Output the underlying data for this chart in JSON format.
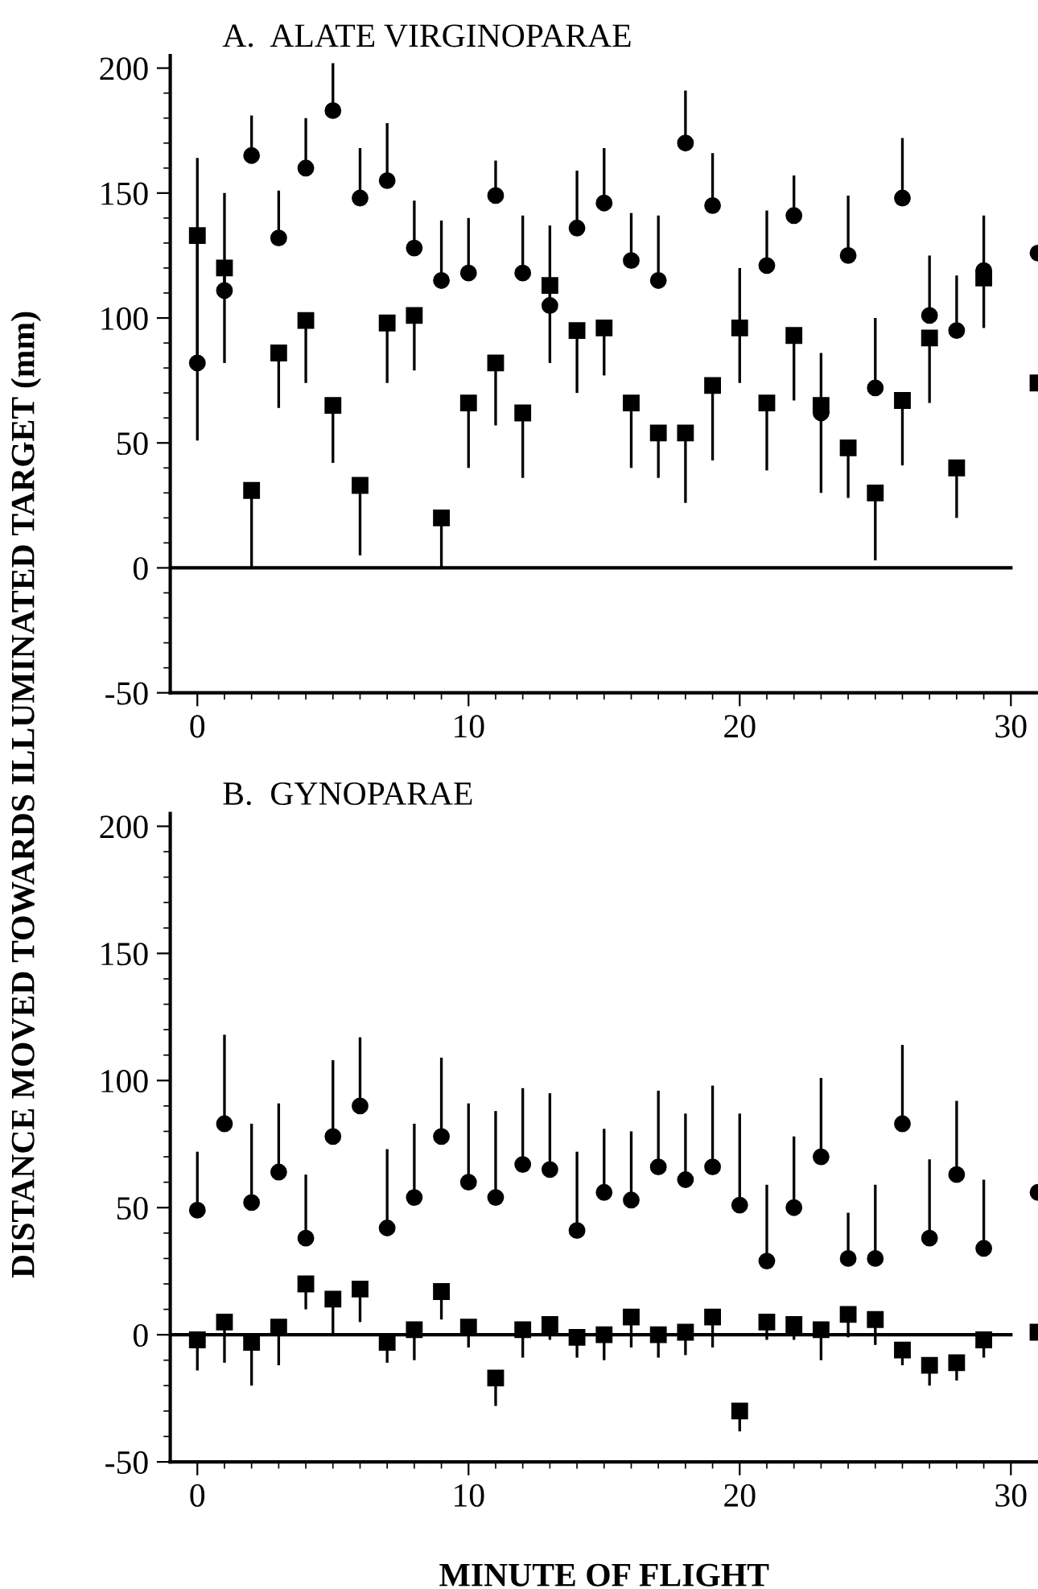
{
  "chart_data": [
    {
      "type": "scatter",
      "title": "A.  ALATE VIRGINOPARAE",
      "ylabel": "DISTANCE MOVED TOWARDS ILLUMINATED TARGET (mm)",
      "x": [
        0,
        1,
        2,
        3,
        4,
        5,
        6,
        7,
        8,
        9,
        10,
        11,
        12,
        13,
        14,
        15,
        16,
        17,
        18,
        19,
        20,
        21,
        22,
        23,
        24,
        25,
        26,
        27,
        28,
        29,
        31
      ],
      "series": [
        {
          "color": "#000000",
          "marker": "circle",
          "values": [
            82,
            111,
            165,
            132,
            160,
            183,
            148,
            155,
            128,
            115,
            118,
            149,
            118,
            105,
            136,
            146,
            123,
            115,
            170,
            145,
            null,
            121,
            141,
            62,
            125,
            72,
            148,
            101,
            95,
            119,
            126
          ],
          "errors": [
            [
              82,
              164
            ],
            [
              111,
              150
            ],
            [
              165,
              181
            ],
            [
              132,
              151
            ],
            [
              160,
              180
            ],
            [
              183,
              202
            ],
            [
              148,
              168
            ],
            [
              155,
              178
            ],
            [
              128,
              147
            ],
            [
              115,
              139
            ],
            [
              118,
              140
            ],
            [
              149,
              163
            ],
            [
              118,
              141
            ],
            [
              105,
              137
            ],
            [
              136,
              159
            ],
            [
              146,
              168
            ],
            [
              123,
              142
            ],
            [
              115,
              141
            ],
            [
              170,
              191
            ],
            [
              145,
              166
            ],
            null,
            [
              121,
              143
            ],
            [
              141,
              157
            ],
            [
              62,
              86
            ],
            [
              125,
              149
            ],
            [
              72,
              100
            ],
            [
              148,
              172
            ],
            [
              101,
              125
            ],
            [
              95,
              117
            ],
            [
              119,
              141
            ],
            null
          ]
        },
        {
          "color": "#000000",
          "marker": "square",
          "values": [
            133,
            120,
            31,
            86,
            99,
            65,
            33,
            98,
            101,
            20,
            66,
            82,
            62,
            113,
            95,
            96,
            66,
            54,
            54,
            73,
            96,
            66,
            93,
            65,
            48,
            30,
            67,
            92,
            40,
            116,
            74
          ],
          "errors": [
            [
              51,
              133
            ],
            [
              82,
              120
            ],
            [
              0,
              31
            ],
            [
              64,
              86
            ],
            [
              74,
              99
            ],
            [
              42,
              65
            ],
            [
              5,
              33
            ],
            [
              74,
              98
            ],
            [
              79,
              101
            ],
            [
              0,
              20
            ],
            [
              40,
              66
            ],
            [
              57,
              82
            ],
            [
              36,
              62
            ],
            [
              82,
              113
            ],
            [
              70,
              95
            ],
            [
              77,
              96
            ],
            [
              40,
              66
            ],
            [
              36,
              54
            ],
            [
              26,
              54
            ],
            [
              43,
              73
            ],
            [
              74,
              120
            ],
            [
              39,
              66
            ],
            [
              67,
              93
            ],
            [
              30,
              65
            ],
            [
              28,
              48
            ],
            [
              3,
              30
            ],
            [
              41,
              67
            ],
            [
              66,
              92
            ],
            [
              20,
              40
            ],
            [
              96,
              116
            ],
            null
          ]
        }
      ],
      "xlim": [
        -1,
        31
      ],
      "ylim": [
        -50,
        205
      ],
      "xticks": [
        0,
        10,
        20,
        30
      ],
      "yticks": [
        -50,
        0,
        50,
        100,
        150,
        200
      ],
      "ref_lines": [
        {
          "axis": "y",
          "value": 0,
          "label": null
        }
      ],
      "grid": false,
      "legend": false
    },
    {
      "type": "scatter",
      "title": "B.  GYNOPARAE",
      "xlabel": "MINUTE OF FLIGHT",
      "x": [
        0,
        1,
        2,
        3,
        4,
        5,
        6,
        7,
        8,
        9,
        10,
        11,
        12,
        13,
        14,
        15,
        16,
        17,
        18,
        19,
        20,
        21,
        22,
        23,
        24,
        25,
        26,
        27,
        28,
        29,
        31
      ],
      "series": [
        {
          "color": "#000000",
          "marker": "circle",
          "values": [
            49,
            83,
            52,
            64,
            38,
            78,
            90,
            42,
            54,
            78,
            60,
            54,
            67,
            65,
            41,
            56,
            53,
            66,
            61,
            66,
            51,
            29,
            50,
            70,
            30,
            30,
            83,
            38,
            63,
            34,
            56
          ],
          "errors": [
            [
              49,
              72
            ],
            [
              83,
              118
            ],
            [
              52,
              83
            ],
            [
              64,
              91
            ],
            [
              38,
              63
            ],
            [
              78,
              108
            ],
            [
              90,
              117
            ],
            [
              42,
              73
            ],
            [
              54,
              83
            ],
            [
              78,
              109
            ],
            [
              60,
              91
            ],
            [
              54,
              88
            ],
            [
              67,
              97
            ],
            [
              65,
              95
            ],
            [
              41,
              72
            ],
            [
              56,
              81
            ],
            [
              53,
              80
            ],
            [
              66,
              96
            ],
            [
              61,
              87
            ],
            [
              66,
              98
            ],
            [
              51,
              87
            ],
            [
              29,
              59
            ],
            [
              50,
              78
            ],
            [
              70,
              101
            ],
            [
              30,
              48
            ],
            [
              30,
              59
            ],
            [
              83,
              114
            ],
            [
              38,
              69
            ],
            [
              63,
              92
            ],
            [
              34,
              61
            ],
            null
          ]
        },
        {
          "color": "#000000",
          "marker": "square",
          "values": [
            -2,
            5,
            -3,
            3,
            20,
            14,
            18,
            -3,
            2,
            17,
            3,
            -17,
            2,
            4,
            -1,
            0,
            7,
            0,
            1,
            7,
            -30,
            5,
            4,
            2,
            8,
            6,
            -6,
            -12,
            -11,
            -2,
            1
          ],
          "errors": [
            [
              -14,
              -2
            ],
            [
              -11,
              5
            ],
            [
              -20,
              -3
            ],
            [
              -12,
              3
            ],
            [
              10,
              20
            ],
            [
              0,
              14
            ],
            [
              5,
              18
            ],
            [
              -11,
              -3
            ],
            [
              -10,
              2
            ],
            [
              6,
              17
            ],
            [
              -5,
              3
            ],
            [
              -28,
              -17
            ],
            [
              -9,
              2
            ],
            [
              -2,
              4
            ],
            [
              -9,
              -1
            ],
            [
              -10,
              0
            ],
            [
              -5,
              7
            ],
            [
              -9,
              0
            ],
            [
              -8,
              1
            ],
            [
              -5,
              7
            ],
            [
              -38,
              -30
            ],
            [
              -2,
              5
            ],
            [
              -2,
              4
            ],
            [
              -10,
              2
            ],
            [
              -1,
              8
            ],
            [
              -4,
              6
            ],
            [
              -12,
              -6
            ],
            [
              -20,
              -12
            ],
            [
              -18,
              -11
            ],
            [
              -9,
              -2
            ],
            null
          ]
        }
      ],
      "xlim": [
        -1,
        31
      ],
      "ylim": [
        -50,
        205
      ],
      "xticks": [
        0,
        10,
        20,
        30
      ],
      "yticks": [
        -50,
        0,
        50,
        100,
        150,
        200
      ],
      "ref_lines": [
        {
          "axis": "y",
          "value": 0,
          "label": null
        }
      ],
      "grid": false,
      "legend": false
    }
  ]
}
